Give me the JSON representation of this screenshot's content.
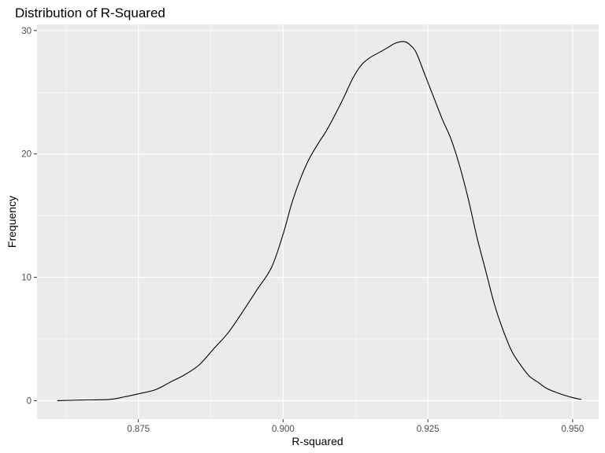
{
  "chart_data": {
    "type": "line",
    "title": "Distribution of R-Squared",
    "xlabel": "R-squared",
    "ylabel": "Frequency",
    "xlim": [
      0.8575,
      0.9545
    ],
    "ylim": [
      -1.5,
      30.5
    ],
    "x_ticks": [
      0.875,
      0.9,
      0.925,
      0.95
    ],
    "x_tick_labels": [
      "0.875",
      "0.900",
      "0.925",
      "0.950"
    ],
    "y_ticks": [
      0,
      10,
      20,
      30
    ],
    "y_tick_labels": [
      "0",
      "10",
      "20",
      "30"
    ],
    "grid": true,
    "background": "#ebebeb",
    "grid_color": "#ffffff",
    "line_color": "#000000",
    "series": [
      {
        "x": [
          0.861,
          0.865,
          0.87,
          0.8725,
          0.875,
          0.878,
          0.8805,
          0.883,
          0.8855,
          0.888,
          0.8905,
          0.893,
          0.8955,
          0.898,
          0.9,
          0.9015,
          0.903,
          0.9045,
          0.906,
          0.9075,
          0.909,
          0.9105,
          0.912,
          0.9135,
          0.915,
          0.9165,
          0.918,
          0.9195,
          0.921,
          0.922,
          0.923,
          0.9245,
          0.926,
          0.9275,
          0.929,
          0.9305,
          0.932,
          0.9335,
          0.935,
          0.9365,
          0.938,
          0.9395,
          0.941,
          0.9425,
          0.944,
          0.9455,
          0.947,
          0.9485,
          0.95,
          0.9515
        ],
        "y": [
          0.0,
          0.05,
          0.1,
          0.3,
          0.55,
          0.9,
          1.5,
          2.1,
          2.9,
          4.2,
          5.5,
          7.2,
          9.0,
          10.8,
          13.5,
          16.0,
          18.0,
          19.6,
          20.8,
          21.9,
          23.2,
          24.6,
          26.1,
          27.2,
          27.8,
          28.2,
          28.6,
          29.0,
          29.1,
          28.8,
          28.2,
          26.4,
          24.6,
          22.8,
          21.2,
          19.0,
          16.3,
          13.2,
          10.5,
          7.8,
          5.7,
          4.0,
          2.9,
          2.0,
          1.5,
          1.0,
          0.7,
          0.45,
          0.25,
          0.1
        ]
      }
    ]
  }
}
